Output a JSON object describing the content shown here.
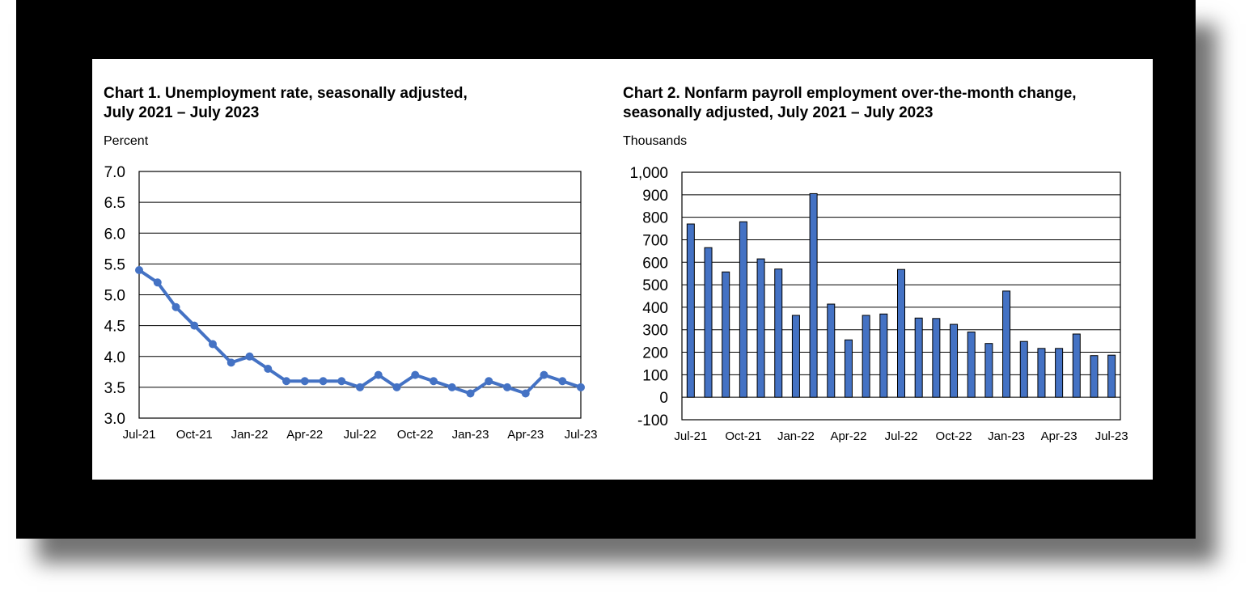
{
  "charts": [
    {
      "title_line1": "Chart 1. Unemployment rate, seasonally adjusted,",
      "title_line2": "July 2021 – July 2023",
      "unit": "Percent"
    },
    {
      "title_line1": "Chart 2. Nonfarm payroll employment over-the-month change,",
      "title_line2": "seasonally adjusted, July 2021 – July 2023",
      "unit": "Thousands"
    }
  ],
  "colors": {
    "series": "#4472C4",
    "bar_stroke": "#000000",
    "frame": "#000000"
  },
  "chart_data": [
    {
      "type": "line",
      "title": "Chart 1. Unemployment rate, seasonally adjusted, July 2021 – July 2023",
      "ylabel": "Percent",
      "ylim": [
        3.0,
        7.0
      ],
      "yticks": [
        3.0,
        3.5,
        4.0,
        4.5,
        5.0,
        5.5,
        6.0,
        6.5,
        7.0
      ],
      "ytick_labels": [
        "3.0",
        "3.5",
        "4.0",
        "4.5",
        "5.0",
        "5.5",
        "6.0",
        "6.5",
        "7.0"
      ],
      "x": [
        "Jul-21",
        "Aug-21",
        "Sep-21",
        "Oct-21",
        "Nov-21",
        "Dec-21",
        "Jan-22",
        "Feb-22",
        "Mar-22",
        "Apr-22",
        "May-22",
        "Jun-22",
        "Jul-22",
        "Aug-22",
        "Sep-22",
        "Oct-22",
        "Nov-22",
        "Dec-22",
        "Jan-23",
        "Feb-23",
        "Mar-23",
        "Apr-23",
        "May-23",
        "Jun-23",
        "Jul-23"
      ],
      "x_tick_labels": [
        "Jul-21",
        "Oct-21",
        "Jan-22",
        "Apr-22",
        "Jul-22",
        "Oct-22",
        "Jan-23",
        "Apr-23",
        "Jul-23"
      ],
      "x_tick_every": 3,
      "grid": true,
      "values": [
        5.4,
        5.2,
        4.8,
        4.5,
        4.2,
        3.9,
        4.0,
        3.8,
        3.6,
        3.6,
        3.6,
        3.6,
        3.5,
        3.7,
        3.5,
        3.7,
        3.6,
        3.5,
        3.4,
        3.6,
        3.5,
        3.4,
        3.7,
        3.6,
        3.5
      ]
    },
    {
      "type": "bar",
      "title": "Chart 2. Nonfarm payroll employment over-the-month change, seasonally adjusted, July 2021 – July 2023",
      "ylabel": "Thousands",
      "ylim": [
        -100,
        1000
      ],
      "yticks": [
        -100,
        0,
        100,
        200,
        300,
        400,
        500,
        600,
        700,
        800,
        900,
        1000
      ],
      "ytick_labels": [
        "-100",
        "0",
        "100",
        "200",
        "300",
        "400",
        "500",
        "600",
        "700",
        "800",
        "900",
        "1,000"
      ],
      "categories": [
        "Jul-21",
        "Aug-21",
        "Sep-21",
        "Oct-21",
        "Nov-21",
        "Dec-21",
        "Jan-22",
        "Feb-22",
        "Mar-22",
        "Apr-22",
        "May-22",
        "Jun-22",
        "Jul-22",
        "Aug-22",
        "Sep-22",
        "Oct-22",
        "Nov-22",
        "Dec-22",
        "Jan-23",
        "Feb-23",
        "Mar-23",
        "Apr-23",
        "May-23",
        "Jun-23",
        "Jul-23"
      ],
      "x_tick_labels": [
        "Jul-21",
        "Oct-21",
        "Jan-22",
        "Apr-22",
        "Jul-22",
        "Oct-22",
        "Jan-23",
        "Apr-23",
        "Jul-23"
      ],
      "x_tick_every": 3,
      "grid": true,
      "values": [
        770,
        665,
        557,
        780,
        615,
        570,
        364,
        905,
        414,
        255,
        364,
        370,
        568,
        352,
        350,
        324,
        290,
        239,
        472,
        248,
        217,
        217,
        281,
        185,
        187
      ]
    }
  ]
}
